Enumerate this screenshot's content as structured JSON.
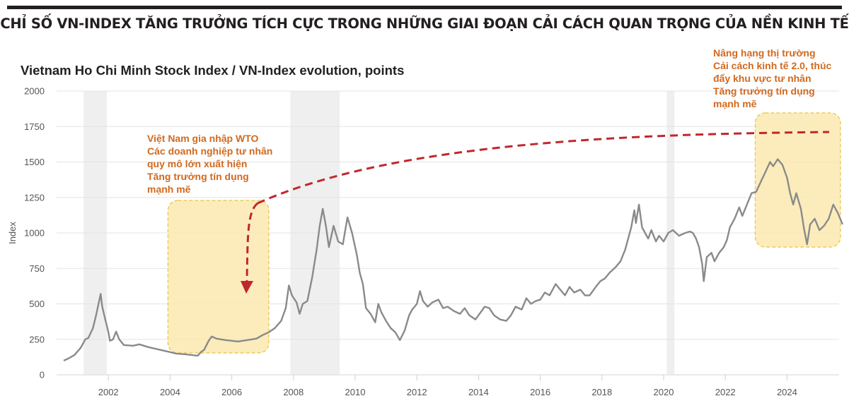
{
  "header": {
    "title": "CHỈ SỐ VN-INDEX TĂNG TRƯỞNG TÍCH CỰC TRONG NHỮNG GIAI ĐOẠN CẢI CÁCH QUAN TRỌNG CỦA NỀN KINH TẾ"
  },
  "colors": {
    "line": "#8a8a8a",
    "highlight_fill": "#fbe9b0",
    "highlight_border": "#e8c43c",
    "annotation_text": "#d2691e",
    "arrow": "#c0272d",
    "recession_band": "#efefef",
    "grid": "#e3e3e3"
  },
  "annotations": {
    "wto": {
      "lines": [
        "Việt Nam gia nhập WTO",
        "Các doanh nghiệp tư nhân",
        "quy mô lớn xuất hiện",
        "Tăng trưởng tín dụng",
        "mạnh mẽ"
      ],
      "period": [
        2004.0,
        2007.5
      ]
    },
    "reform": {
      "lines": [
        "Nâng hạng thị trường",
        "Cải cách kinh tế 2.0, thúc",
        "đẩy khu vực tư nhân",
        "Tăng trưởng tín dụng",
        "mạnh mẽ"
      ],
      "period": [
        2022.9,
        2025.8
      ]
    }
  },
  "chart_data": {
    "type": "line",
    "title": "Vietnam Ho Chi Minh Stock Index / VN-Index evolution, points",
    "xlabel": "",
    "ylabel": "Index",
    "xlim": [
      2000.0,
      2025.8
    ],
    "ylim": [
      0,
      2000
    ],
    "grid": true,
    "x_ticks": [
      "2002",
      "2004",
      "2006",
      "2008",
      "2010",
      "2012",
      "2014",
      "2016",
      "2018",
      "2020",
      "2022",
      "2024"
    ],
    "y_ticks": [
      "0",
      "250",
      "500",
      "750",
      "1000",
      "1250",
      "1500",
      "1750",
      "2000"
    ],
    "shaded_periods": [
      [
        2001.2,
        2001.95
      ],
      [
        2007.9,
        2009.5
      ],
      [
        2020.1,
        2020.35
      ]
    ],
    "series": [
      {
        "name": "VN-Index",
        "points": [
          [
            2000.55,
            100
          ],
          [
            2000.7,
            115
          ],
          [
            2000.9,
            140
          ],
          [
            2001.1,
            190
          ],
          [
            2001.25,
            250
          ],
          [
            2001.35,
            260
          ],
          [
            2001.5,
            330
          ],
          [
            2001.6,
            420
          ],
          [
            2001.7,
            520
          ],
          [
            2001.75,
            570
          ],
          [
            2001.8,
            480
          ],
          [
            2001.9,
            390
          ],
          [
            2002.0,
            300
          ],
          [
            2002.05,
            240
          ],
          [
            2002.15,
            250
          ],
          [
            2002.25,
            305
          ],
          [
            2002.35,
            250
          ],
          [
            2002.5,
            210
          ],
          [
            2002.8,
            205
          ],
          [
            2003.0,
            215
          ],
          [
            2003.3,
            195
          ],
          [
            2003.6,
            180
          ],
          [
            2003.9,
            165
          ],
          [
            2004.0,
            160
          ],
          [
            2004.2,
            150
          ],
          [
            2004.5,
            145
          ],
          [
            2004.7,
            140
          ],
          [
            2004.9,
            135
          ],
          [
            2005.0,
            160
          ],
          [
            2005.1,
            175
          ],
          [
            2005.25,
            240
          ],
          [
            2005.35,
            270
          ],
          [
            2005.5,
            255
          ],
          [
            2005.8,
            245
          ],
          [
            2006.0,
            240
          ],
          [
            2006.2,
            235
          ],
          [
            2006.5,
            245
          ],
          [
            2006.8,
            255
          ],
          [
            2007.0,
            280
          ],
          [
            2007.2,
            300
          ],
          [
            2007.4,
            330
          ],
          [
            2007.6,
            380
          ],
          [
            2007.75,
            470
          ],
          [
            2007.85,
            630
          ],
          [
            2007.95,
            560
          ],
          [
            2008.1,
            510
          ],
          [
            2008.2,
            430
          ],
          [
            2008.3,
            500
          ],
          [
            2008.45,
            520
          ],
          [
            2008.6,
            680
          ],
          [
            2008.75,
            880
          ],
          [
            2008.85,
            1050
          ],
          [
            2008.95,
            1170
          ],
          [
            2009.05,
            1050
          ],
          [
            2009.15,
            900
          ],
          [
            2009.3,
            1050
          ],
          [
            2009.45,
            940
          ],
          [
            2009.6,
            920
          ],
          [
            2009.75,
            1110
          ],
          [
            2009.9,
            1000
          ],
          [
            2010.05,
            850
          ],
          [
            2010.15,
            720
          ],
          [
            2010.25,
            640
          ],
          [
            2010.35,
            470
          ],
          [
            2010.5,
            430
          ],
          [
            2010.65,
            370
          ],
          [
            2010.75,
            500
          ],
          [
            2010.85,
            440
          ],
          [
            2011.0,
            380
          ],
          [
            2011.15,
            330
          ],
          [
            2011.3,
            300
          ],
          [
            2011.45,
            245
          ],
          [
            2011.6,
            310
          ],
          [
            2011.75,
            420
          ],
          [
            2011.85,
            460
          ],
          [
            2012.0,
            500
          ],
          [
            2012.1,
            590
          ],
          [
            2012.2,
            520
          ],
          [
            2012.35,
            480
          ],
          [
            2012.5,
            510
          ],
          [
            2012.7,
            530
          ],
          [
            2012.85,
            470
          ],
          [
            2013.0,
            480
          ],
          [
            2013.2,
            450
          ],
          [
            2013.4,
            430
          ],
          [
            2013.55,
            470
          ],
          [
            2013.7,
            420
          ],
          [
            2013.9,
            390
          ],
          [
            2014.0,
            420
          ],
          [
            2014.2,
            480
          ],
          [
            2014.35,
            470
          ],
          [
            2014.5,
            420
          ],
          [
            2014.7,
            390
          ],
          [
            2014.9,
            380
          ],
          [
            2015.05,
            420
          ],
          [
            2015.2,
            480
          ],
          [
            2015.4,
            460
          ],
          [
            2015.55,
            540
          ],
          [
            2015.7,
            500
          ],
          [
            2015.85,
            520
          ],
          [
            2016.0,
            530
          ],
          [
            2016.15,
            580
          ],
          [
            2016.3,
            560
          ],
          [
            2016.5,
            640
          ],
          [
            2016.65,
            600
          ],
          [
            2016.8,
            560
          ],
          [
            2016.95,
            620
          ],
          [
            2017.1,
            580
          ],
          [
            2017.3,
            600
          ],
          [
            2017.45,
            560
          ],
          [
            2017.6,
            560
          ],
          [
            2017.8,
            620
          ],
          [
            2017.95,
            660
          ],
          [
            2018.1,
            680
          ],
          [
            2018.25,
            720
          ],
          [
            2018.45,
            760
          ],
          [
            2018.6,
            800
          ],
          [
            2018.75,
            880
          ],
          [
            2018.85,
            960
          ],
          [
            2018.95,
            1040
          ],
          [
            2019.05,
            1160
          ],
          [
            2019.1,
            1070
          ],
          [
            2019.2,
            1200
          ],
          [
            2019.3,
            1040
          ],
          [
            2019.4,
            1000
          ],
          [
            2019.5,
            960
          ],
          [
            2019.6,
            1020
          ],
          [
            2019.75,
            940
          ],
          [
            2019.85,
            980
          ],
          [
            2020.0,
            940
          ],
          [
            2020.15,
            1000
          ],
          [
            2020.3,
            1020
          ],
          [
            2020.5,
            980
          ],
          [
            2020.7,
            1000
          ],
          [
            2020.85,
            1010
          ],
          [
            2020.95,
            1000
          ],
          [
            2021.05,
            960
          ],
          [
            2021.15,
            900
          ],
          [
            2021.25,
            780
          ],
          [
            2021.3,
            660
          ],
          [
            2021.4,
            830
          ],
          [
            2021.55,
            860
          ],
          [
            2021.65,
            800
          ],
          [
            2021.8,
            860
          ],
          [
            2021.95,
            900
          ],
          [
            2022.05,
            950
          ],
          [
            2022.15,
            1040
          ],
          [
            2022.3,
            1100
          ],
          [
            2022.45,
            1180
          ],
          [
            2022.55,
            1120
          ],
          [
            2022.7,
            1200
          ],
          [
            2022.85,
            1280
          ],
          [
            2023.0,
            1290
          ],
          [
            2023.15,
            1360
          ],
          [
            2023.3,
            1430
          ],
          [
            2023.45,
            1500
          ],
          [
            2023.55,
            1470
          ],
          [
            2023.7,
            1520
          ],
          [
            2023.85,
            1480
          ],
          [
            2024.0,
            1390
          ],
          [
            2024.1,
            1280
          ],
          [
            2024.2,
            1200
          ],
          [
            2024.3,
            1280
          ],
          [
            2024.45,
            1170
          ],
          [
            2024.55,
            1030
          ],
          [
            2024.65,
            920
          ],
          [
            2024.75,
            1060
          ],
          [
            2024.9,
            1100
          ],
          [
            2025.05,
            1020
          ],
          [
            2025.2,
            1050
          ],
          [
            2025.35,
            1100
          ],
          [
            2025.5,
            1200
          ],
          [
            2025.65,
            1140
          ],
          [
            2025.8,
            1060
          ]
        ]
      }
    ]
  }
}
